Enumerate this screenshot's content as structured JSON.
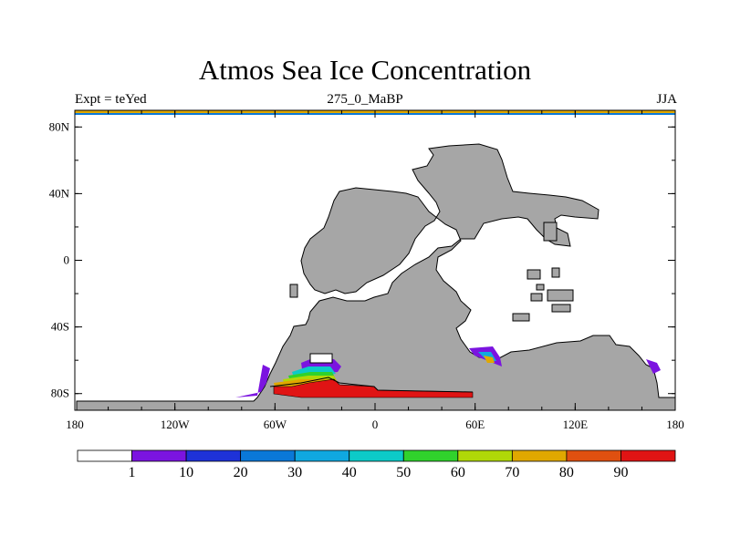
{
  "title": "Atmos Sea Ice Concentration",
  "subtitle_left": "Expt = teYed",
  "subtitle_center": "275_0_MaBP",
  "subtitle_right": "JJA",
  "map": {
    "projection": "cylindrical-equidistant",
    "lon_range": [
      -180,
      180
    ],
    "lat_range": [
      -90,
      90
    ],
    "y_ticks": [
      {
        "lat": 80,
        "label": "80N"
      },
      {
        "lat": 40,
        "label": "40N"
      },
      {
        "lat": 0,
        "label": "0"
      },
      {
        "lat": -40,
        "label": "40S"
      },
      {
        "lat": -80,
        "label": "80S"
      }
    ],
    "x_ticks": [
      {
        "lon": -180,
        "label": "180"
      },
      {
        "lon": -120,
        "label": "120W"
      },
      {
        "lon": -60,
        "label": "60W"
      },
      {
        "lon": 0,
        "label": "0"
      },
      {
        "lon": 60,
        "label": "60E"
      },
      {
        "lon": 120,
        "label": "120E"
      },
      {
        "lon": 180,
        "label": "180"
      }
    ],
    "land_color": "#a6a6a6",
    "ocean_color": "#ffffff"
  },
  "colorbar": {
    "levels": [
      "1",
      "10",
      "20",
      "30",
      "40",
      "50",
      "60",
      "70",
      "80",
      "90"
    ],
    "colors": [
      "#ffffff",
      "#7b14e0",
      "#1e32d8",
      "#0a78d8",
      "#10a8e0",
      "#0ccac8",
      "#30d22c",
      "#b0d808",
      "#e0a800",
      "#e05010",
      "#e01414"
    ]
  },
  "legend": {
    "unit": "%",
    "description": "sea ice concentration"
  }
}
